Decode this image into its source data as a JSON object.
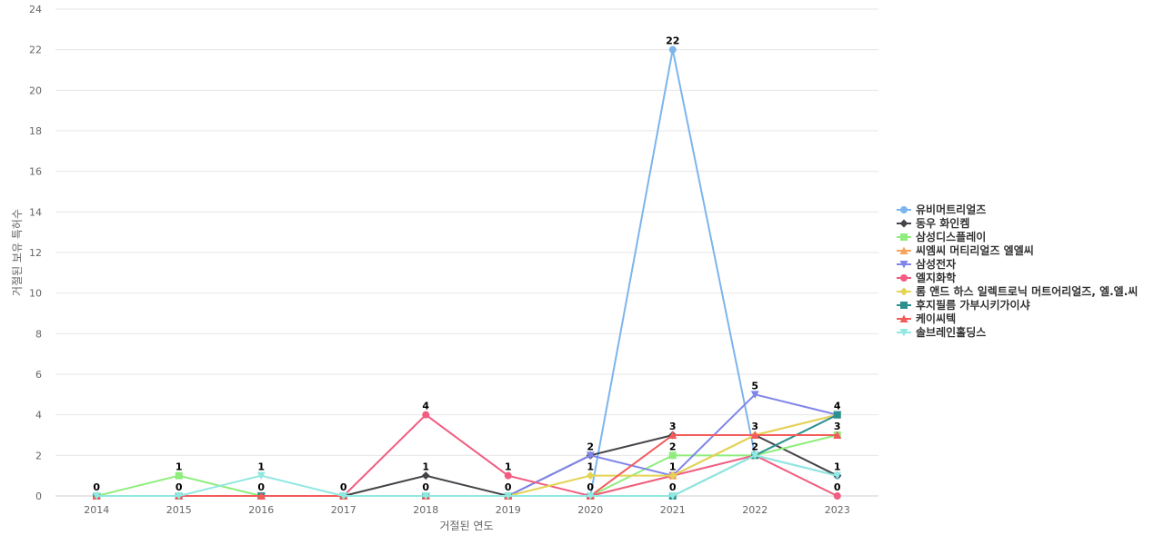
{
  "chart_data": {
    "type": "line",
    "title": "",
    "xlabel": "거절된 연도",
    "ylabel": "거절된 보유 특허수",
    "categories": [
      "2014",
      "2015",
      "2016",
      "2017",
      "2018",
      "2019",
      "2020",
      "2021",
      "2022",
      "2023"
    ],
    "ylim": [
      0,
      24
    ],
    "yticks": [
      0,
      2,
      4,
      6,
      8,
      10,
      12,
      14,
      16,
      18,
      20,
      22,
      24
    ],
    "grid": true,
    "legend_position": "right",
    "series": [
      {
        "name": "유비머트리얼즈",
        "color": "#7cb5ec",
        "marker": "circle",
        "values": [
          0,
          0,
          0,
          0,
          0,
          0,
          0,
          22,
          2,
          1
        ]
      },
      {
        "name": "동우 화인켐",
        "color": "#434348",
        "marker": "diamond",
        "values": [
          0,
          0,
          0,
          0,
          1,
          0,
          2,
          3,
          3,
          1
        ]
      },
      {
        "name": "삼성디스플레이",
        "color": "#90ed7d",
        "marker": "square",
        "values": [
          0,
          1,
          0,
          0,
          0,
          0,
          0,
          2,
          2,
          3
        ]
      },
      {
        "name": "씨엠씨 머티리얼즈 엘엘씨",
        "color": "#f7a35c",
        "marker": "triangle",
        "values": [
          0,
          0,
          0,
          0,
          0,
          0,
          0,
          1,
          3,
          4
        ]
      },
      {
        "name": "삼성전자",
        "color": "#8085e9",
        "marker": "triangle-down",
        "values": [
          0,
          0,
          0,
          0,
          0,
          0,
          2,
          1,
          5,
          4
        ]
      },
      {
        "name": "엘지화학",
        "color": "#f15c80",
        "marker": "circle",
        "values": [
          0,
          0,
          0,
          0,
          4,
          1,
          0,
          1,
          2,
          0
        ]
      },
      {
        "name": "롬 앤드 하스 일렉트로닉 머트어리얼즈, 엘.엘.씨",
        "color": "#e4d354",
        "marker": "diamond",
        "values": [
          0,
          0,
          0,
          0,
          0,
          0,
          1,
          1,
          3,
          4
        ]
      },
      {
        "name": "후지필름 가부시키가이샤",
        "color": "#2b908f",
        "marker": "square",
        "values": [
          0,
          0,
          0,
          0,
          0,
          0,
          0,
          0,
          2,
          4
        ]
      },
      {
        "name": "케이씨텍",
        "color": "#f45b5b",
        "marker": "triangle",
        "values": [
          0,
          0,
          0,
          0,
          0,
          0,
          0,
          3,
          3,
          3
        ]
      },
      {
        "name": "솔브레인홀딩스",
        "color": "#91e8e1",
        "marker": "triangle-down",
        "values": [
          0,
          0,
          1,
          0,
          0,
          0,
          0,
          0,
          2,
          1
        ]
      }
    ],
    "data_labels": [
      {
        "category": "2014",
        "value": 0,
        "text": "0"
      },
      {
        "category": "2015",
        "value": 1,
        "text": "1"
      },
      {
        "category": "2015",
        "value": 0,
        "text": "0"
      },
      {
        "category": "2016",
        "value": 1,
        "text": "1"
      },
      {
        "category": "2016",
        "value": 0,
        "text": "0"
      },
      {
        "category": "2017",
        "value": 0,
        "text": "0"
      },
      {
        "category": "2018",
        "value": 4,
        "text": "4"
      },
      {
        "category": "2018",
        "value": 1,
        "text": "1"
      },
      {
        "category": "2018",
        "value": 0,
        "text": "0"
      },
      {
        "category": "2019",
        "value": 1,
        "text": "1"
      },
      {
        "category": "2019",
        "value": 0,
        "text": "0"
      },
      {
        "category": "2020",
        "value": 2,
        "text": "2"
      },
      {
        "category": "2020",
        "value": 1,
        "text": "1"
      },
      {
        "category": "2020",
        "value": 0,
        "text": "0"
      },
      {
        "category": "2021",
        "value": 22,
        "text": "22"
      },
      {
        "category": "2021",
        "value": 3,
        "text": "3"
      },
      {
        "category": "2021",
        "value": 2,
        "text": "2"
      },
      {
        "category": "2021",
        "value": 1,
        "text": "1"
      },
      {
        "category": "2021",
        "value": 0,
        "text": "0"
      },
      {
        "category": "2022",
        "value": 5,
        "text": "5"
      },
      {
        "category": "2022",
        "value": 3,
        "text": "3"
      },
      {
        "category": "2022",
        "value": 2,
        "text": "2"
      },
      {
        "category": "2023",
        "value": 4,
        "text": "4"
      },
      {
        "category": "2023",
        "value": 3,
        "text": "3"
      },
      {
        "category": "2023",
        "value": 1,
        "text": "1"
      },
      {
        "category": "2023",
        "value": 0,
        "text": "0"
      }
    ]
  }
}
